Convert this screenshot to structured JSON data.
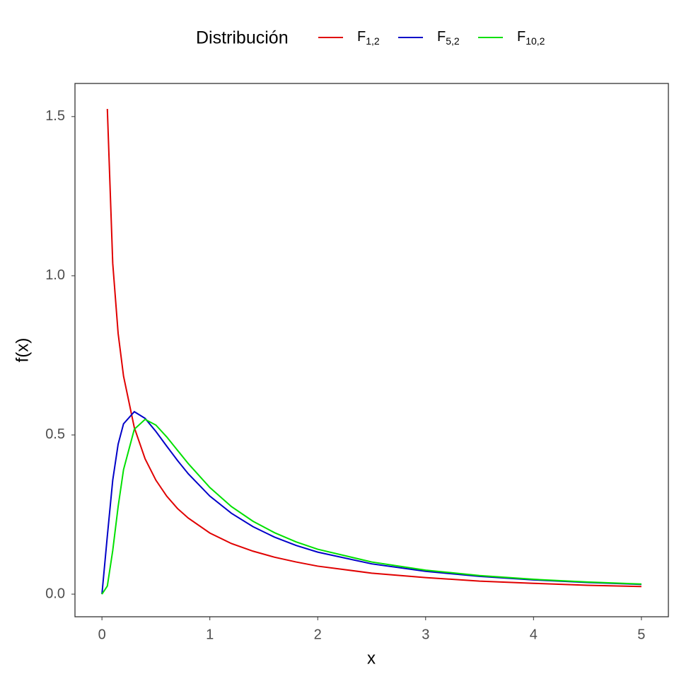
{
  "chart_data": {
    "type": "line",
    "legend_title": "Distribución",
    "x_label": "x",
    "y_label": "f(x)",
    "x": [
      0,
      0.05,
      0.1,
      0.15,
      0.2,
      0.3,
      0.4,
      0.5,
      0.6,
      0.7,
      0.8,
      1.0,
      1.2,
      1.4,
      1.6,
      1.8,
      2.0,
      2.5,
      3.0,
      3.5,
      4.0,
      4.5,
      5.0
    ],
    "series": [
      {
        "name": "F",
        "subscript": "1,2",
        "color": "#e00000",
        "values": [
          null,
          1.524,
          1.039,
          0.819,
          0.685,
          0.523,
          0.425,
          0.358,
          0.308,
          0.269,
          0.239,
          0.192,
          0.159,
          0.135,
          0.116,
          0.101,
          0.088,
          0.066,
          0.052,
          0.041,
          0.034,
          0.028,
          0.024
        ]
      },
      {
        "name": "F",
        "subscript": "5,2",
        "color": "#0000c8",
        "values": [
          0,
          0.183,
          0.358,
          0.471,
          0.535,
          0.573,
          0.552,
          0.511,
          0.465,
          0.42,
          0.378,
          0.308,
          0.254,
          0.212,
          0.179,
          0.153,
          0.132,
          0.0952,
          0.0717,
          0.0559,
          0.0448,
          0.0367,
          0.0306
        ]
      },
      {
        "name": "F",
        "subscript": "10,2",
        "color": "#00e000",
        "values": [
          0,
          0.0256,
          0.137,
          0.275,
          0.391,
          0.518,
          0.549,
          0.531,
          0.494,
          0.452,
          0.41,
          0.335,
          0.275,
          0.229,
          0.193,
          0.164,
          0.141,
          0.101,
          0.0754,
          0.0585,
          0.0466,
          0.038,
          0.0316
        ]
      }
    ],
    "xlim": [
      -0.25,
      5.25
    ],
    "xticks": [
      0,
      1,
      2,
      3,
      4,
      5
    ],
    "ylim": [
      -0.071,
      1.604
    ],
    "yticks": [
      {
        "value": 0,
        "label": "0.0"
      },
      0.5,
      {
        "value": 1,
        "label": "1.0"
      },
      1.5
    ],
    "grid": false
  }
}
